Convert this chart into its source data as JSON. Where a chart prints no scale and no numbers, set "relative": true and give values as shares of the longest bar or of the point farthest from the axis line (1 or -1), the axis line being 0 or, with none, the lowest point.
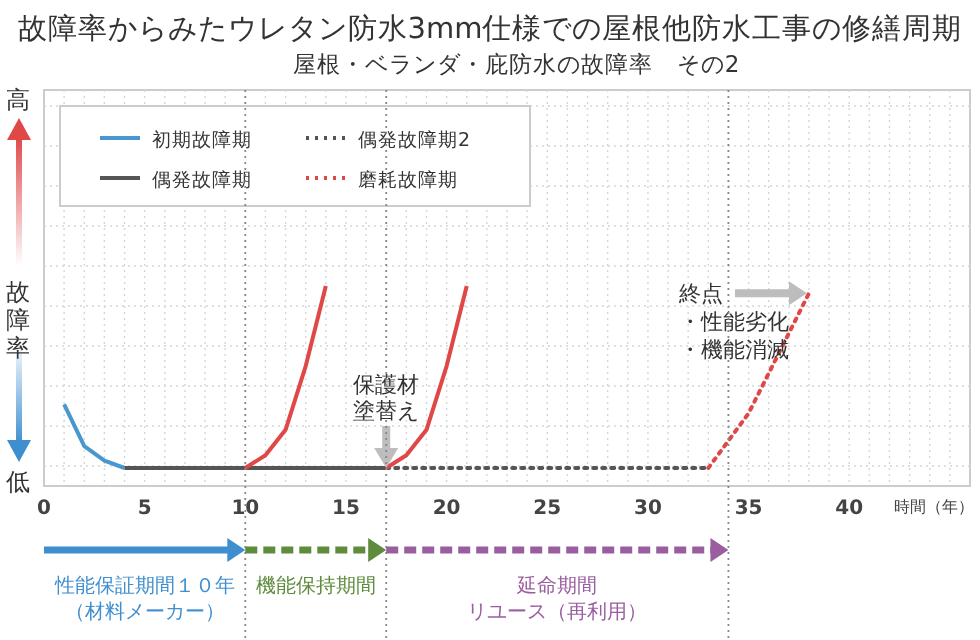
{
  "chart_data": {
    "type": "line",
    "title": "故障率からみたウレタン防水3mm仕様での屋根他防水工事の修繕周期",
    "subtitle": "屋根・ベランダ・庇防水の故障率　その2",
    "ylabel": "故障率",
    "xlabel": "時間（年）",
    "relative": true,
    "xlim": [
      0,
      46
    ],
    "xticks": [
      0,
      5,
      10,
      15,
      20,
      25,
      30,
      35,
      40
    ],
    "grid": true,
    "legend": "top left",
    "series": [
      {
        "name": "初期故障期",
        "color": "#4a97d0",
        "line_style": "solid",
        "x": [
          1,
          2,
          3,
          4
        ],
        "values": [
          0.35,
          0.12,
          0.04,
          0
        ]
      },
      {
        "name": "偶発故障期",
        "color": "#555555",
        "line_style": "solid",
        "x": [
          4,
          17
        ],
        "values": [
          0,
          0
        ]
      },
      {
        "name": "偶発故障期2",
        "color": "#555555",
        "line_style": "dotted",
        "x": [
          17,
          33
        ],
        "values": [
          0,
          0
        ]
      },
      {
        "name": "磨耗故障期",
        "color": "#e04848",
        "line_style": "dotted",
        "x": [
          33,
          34,
          35,
          36,
          37,
          38
        ],
        "values": [
          0,
          0.15,
          0.3,
          0.52,
          0.74,
          0.96
        ]
      },
      {
        "color": "#e04848",
        "line_style": "solid",
        "x": [
          10,
          11,
          12,
          13,
          14
        ],
        "values": [
          0,
          0.07,
          0.21,
          0.56,
          1
        ]
      },
      {
        "color": "#e04848",
        "line_style": "solid",
        "x": [
          17,
          18,
          19,
          20,
          21
        ],
        "values": [
          0,
          0.07,
          0.21,
          0.56,
          1
        ]
      }
    ],
    "ref_lines": [
      {
        "axis": "x",
        "value": 10,
        "color": "#888888",
        "line_style": "dotted"
      },
      {
        "axis": "x",
        "value": 17,
        "color": "#888888",
        "line_style": "dotted"
      },
      {
        "axis": "x",
        "value": 34,
        "color": "#888888",
        "line_style": "dotted"
      }
    ],
    "annotations": [
      "高",
      "低",
      {
        "text": "保護材塗替え",
        "x": 17,
        "y": 0
      },
      {
        "text": "終点・性能劣化・機能消滅",
        "x": 38,
        "y": 0.96
      },
      "性能保証期間１０年（材料メーカー）",
      "機能保持期間",
      "延命期間リユース（再利用）"
    ]
  }
}
